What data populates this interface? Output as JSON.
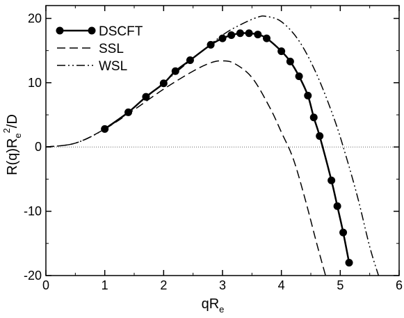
{
  "chart_data": {
    "type": "line",
    "xlabel": {
      "main": "qR",
      "sub": "e"
    },
    "ylabel": {
      "p1": "R(q)R",
      "sub": "e",
      "sup": "2",
      "p2": "/D"
    },
    "xlim": [
      0,
      6
    ],
    "ylim": [
      -20,
      22
    ],
    "xticks": [
      "0",
      "1",
      "2",
      "3",
      "4",
      "5",
      "6"
    ],
    "yticks": [
      "-20",
      "-10",
      "0",
      "10",
      "20"
    ],
    "grid": false,
    "legend_position": "top-left",
    "series": [
      {
        "name": "DSCFT",
        "style": "solid-with-circles",
        "color": "#000000",
        "x": [
          1.0,
          1.4,
          1.7,
          2.0,
          2.2,
          2.45,
          2.8,
          3.0,
          3.15,
          3.3,
          3.45,
          3.6,
          3.75,
          4.0,
          4.15,
          4.3,
          4.45,
          4.55,
          4.65,
          4.85,
          4.95,
          5.05,
          5.15
        ],
        "y": [
          2.8,
          5.4,
          7.8,
          9.9,
          11.8,
          13.5,
          15.9,
          16.9,
          17.4,
          17.7,
          17.7,
          17.5,
          16.9,
          14.9,
          13.3,
          11.0,
          8.0,
          4.6,
          1.7,
          -5.2,
          -9.2,
          -13.3,
          -18.0
        ]
      },
      {
        "name": "SSL",
        "style": "dashed",
        "color": "#000000",
        "x": [
          0,
          0.5,
          1.0,
          1.5,
          2.0,
          2.5,
          2.8,
          3.0,
          3.2,
          3.5,
          3.8,
          4.0,
          4.2,
          4.4,
          4.6,
          4.75
        ],
        "y": [
          0,
          0.6,
          2.8,
          5.8,
          9.0,
          11.8,
          13.1,
          13.4,
          13.0,
          10.8,
          6.2,
          2.3,
          -1.8,
          -8.0,
          -15.0,
          -20.0
        ]
      },
      {
        "name": "WSL",
        "style": "dash-dot-dot",
        "color": "#000000",
        "x": [
          0,
          0.5,
          1.0,
          1.5,
          2.0,
          2.5,
          3.0,
          3.3,
          3.6,
          3.75,
          4.0,
          4.3,
          4.6,
          4.9,
          5.1,
          5.3,
          5.5,
          5.65
        ],
        "y": [
          0,
          0.6,
          2.8,
          6.2,
          10.0,
          13.8,
          17.4,
          19.0,
          20.2,
          20.3,
          19.5,
          16.5,
          11.3,
          4.3,
          -1.5,
          -8.0,
          -15.5,
          -20.0
        ]
      }
    ],
    "reference_line": {
      "y": 0,
      "style": "dotted"
    }
  }
}
